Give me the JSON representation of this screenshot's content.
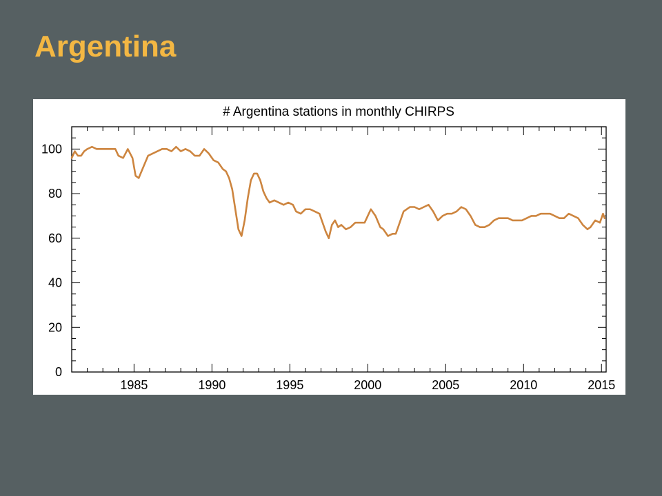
{
  "slide": {
    "title": "Argentina",
    "title_color": "#f3b743",
    "background_color": "#566062"
  },
  "chart_data": {
    "type": "line",
    "title": "# Argentina stations in monthly CHIRPS",
    "xlabel": "",
    "ylabel": "",
    "xlim": [
      1981,
      2015.3
    ],
    "ylim": [
      0,
      110
    ],
    "x_ticks": [
      1985,
      1990,
      1995,
      2000,
      2005,
      2010,
      2015
    ],
    "y_ticks": [
      0,
      20,
      40,
      60,
      80,
      100
    ],
    "grid": false,
    "legend": "none",
    "line_color": "#cd853f",
    "series": [
      {
        "x": [
          1981.0,
          1981.2,
          1981.4,
          1981.6,
          1981.8,
          1982.0,
          1982.3,
          1982.6,
          1983.0,
          1983.3,
          1983.6,
          1983.8,
          1984.0,
          1984.3,
          1984.6,
          1984.9,
          1985.1,
          1985.3,
          1985.6,
          1985.9,
          1986.2,
          1986.5,
          1986.8,
          1987.1,
          1987.4,
          1987.7,
          1988.0,
          1988.3,
          1988.6,
          1988.9,
          1989.2,
          1989.5,
          1989.8,
          1990.1,
          1990.4,
          1990.7,
          1990.9,
          1991.1,
          1991.3,
          1991.5,
          1991.7,
          1991.9,
          1992.1,
          1992.3,
          1992.5,
          1992.7,
          1992.9,
          1993.1,
          1993.3,
          1993.5,
          1993.7,
          1994.0,
          1994.3,
          1994.6,
          1994.9,
          1995.2,
          1995.4,
          1995.7,
          1996.0,
          1996.3,
          1996.6,
          1996.9,
          1997.1,
          1997.3,
          1997.5,
          1997.7,
          1997.9,
          1998.1,
          1998.3,
          1998.6,
          1998.9,
          1999.2,
          1999.5,
          1999.8,
          2000.0,
          2000.2,
          2000.5,
          2000.8,
          2001.0,
          2001.3,
          2001.6,
          2001.8,
          2002.0,
          2002.3,
          2002.7,
          2003.0,
          2003.3,
          2003.6,
          2003.9,
          2004.2,
          2004.5,
          2004.8,
          2005.1,
          2005.4,
          2005.7,
          2006.0,
          2006.3,
          2006.6,
          2006.9,
          2007.2,
          2007.5,
          2007.8,
          2008.1,
          2008.4,
          2008.7,
          2009.0,
          2009.3,
          2009.6,
          2009.9,
          2010.2,
          2010.5,
          2010.8,
          2011.1,
          2011.4,
          2011.7,
          2012.0,
          2012.3,
          2012.6,
          2012.9,
          2013.2,
          2013.5,
          2013.8,
          2014.1,
          2014.3,
          2014.6,
          2014.9,
          2015.1,
          2015.2
        ],
        "values": [
          96,
          99,
          97,
          97,
          99,
          100,
          101,
          100,
          100,
          100,
          100,
          100,
          97,
          96,
          100,
          96,
          88,
          87,
          92,
          97,
          98,
          99,
          100,
          100,
          99,
          101,
          99,
          100,
          99,
          97,
          97,
          100,
          98,
          95,
          94,
          91,
          90,
          87,
          82,
          73,
          64,
          61,
          68,
          78,
          86,
          89,
          89,
          86,
          81,
          78,
          76,
          77,
          76,
          75,
          76,
          75,
          72,
          71,
          73,
          73,
          72,
          71,
          67,
          63,
          60,
          66,
          68,
          65,
          66,
          64,
          65,
          67,
          67,
          67,
          70,
          73,
          70,
          65,
          64,
          61,
          62,
          62,
          66,
          72,
          74,
          74,
          73,
          74,
          75,
          72,
          68,
          70,
          71,
          71,
          72,
          74,
          73,
          70,
          66,
          65,
          65,
          66,
          68,
          69,
          69,
          69,
          68,
          68,
          68,
          69,
          70,
          70,
          71,
          71,
          71,
          70,
          69,
          69,
          71,
          70,
          69,
          66,
          64,
          65,
          68,
          67,
          71,
          69
        ]
      }
    ]
  }
}
